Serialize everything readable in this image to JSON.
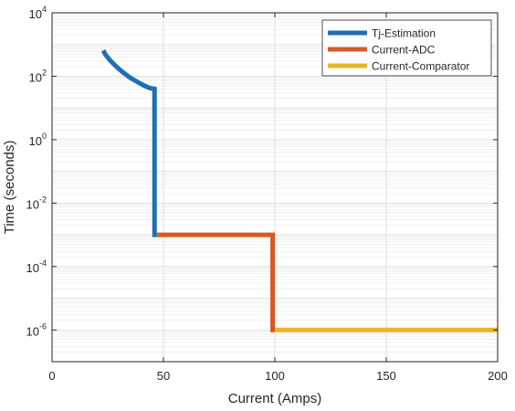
{
  "chart_data": {
    "type": "line",
    "xlabel": "Current (Amps)",
    "ylabel": "Time (seconds)",
    "xlim": [
      0,
      200
    ],
    "ylim": [
      1e-07,
      10000
    ],
    "yscale": "log",
    "grid": true,
    "legend_position": "top-right",
    "x_ticks": [
      "0",
      "50",
      "100",
      "150",
      "200"
    ],
    "y_ticks": [
      {
        "mantissa": "10",
        "exp": "-6",
        "value": 1e-06
      },
      {
        "mantissa": "10",
        "exp": "-4",
        "value": 0.0001
      },
      {
        "mantissa": "10",
        "exp": "-2",
        "value": 0.01
      },
      {
        "mantissa": "10",
        "exp": "0",
        "value": 1
      },
      {
        "mantissa": "10",
        "exp": "2",
        "value": 100
      },
      {
        "mantissa": "10",
        "exp": "4",
        "value": 10000
      }
    ],
    "series": [
      {
        "name": "Tj-Estimation",
        "color": "#1f6fb4",
        "x": [
          23,
          24,
          26,
          28,
          30,
          32,
          35,
          38,
          41,
          44,
          46,
          46,
          47
        ],
        "y": [
          650,
          480,
          320,
          230,
          170,
          130,
          90,
          68,
          52,
          42,
          40,
          0.001,
          0.001
        ]
      },
      {
        "name": "Current-ADC",
        "color": "#d65a25",
        "x": [
          47,
          99,
          99,
          100
        ],
        "y": [
          0.001,
          0.001,
          1e-06,
          1e-06
        ]
      },
      {
        "name": "Current-Comparator",
        "color": "#e8b32d",
        "x": [
          100,
          200
        ],
        "y": [
          1e-06,
          1e-06
        ]
      }
    ]
  }
}
